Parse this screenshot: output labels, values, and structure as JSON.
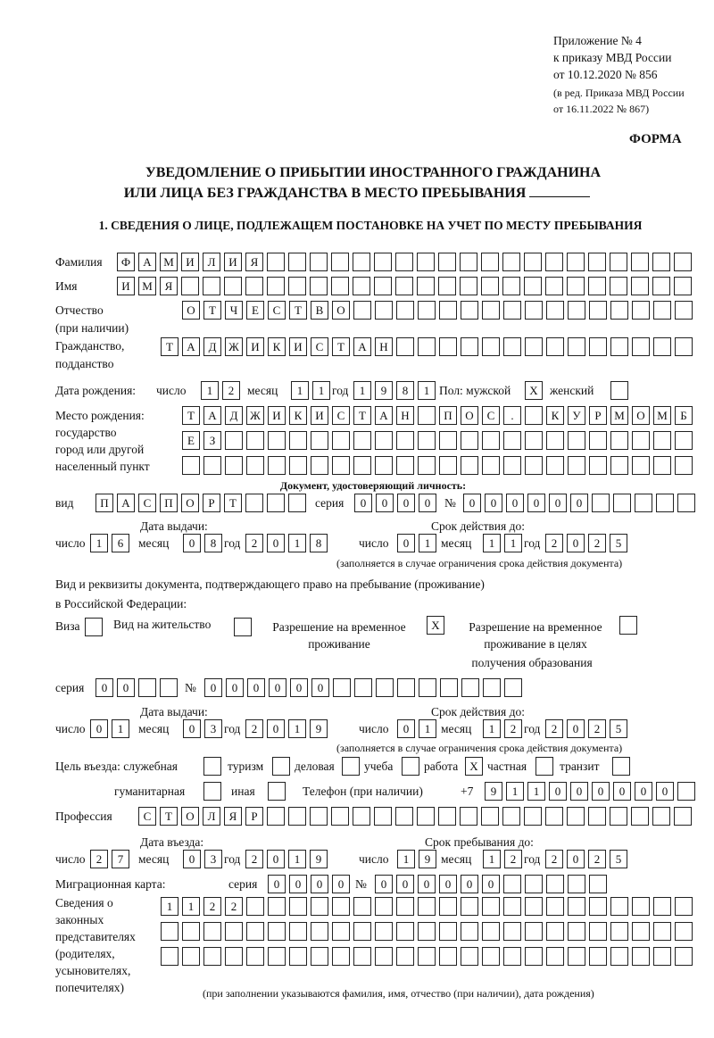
{
  "header": {
    "appendix_line1": "Приложение № 4",
    "appendix_line2": "к приказу МВД России",
    "appendix_line3": "от 10.12.2020 № 856",
    "amend_line1": "(в ред. Приказа МВД России",
    "amend_line2": "от 16.11.2022 № 867)",
    "form_label": "ФОРМА",
    "title_line1": "УВЕДОМЛЕНИЕ О ПРИБЫТИИ ИНОСТРАННОГО ГРАЖДАНИНА",
    "title_line2": "ИЛИ ЛИЦА БЕЗ ГРАЖДАНСТВА В МЕСТО ПРЕБЫВАНИЯ",
    "section1": "1. СВЕДЕНИЯ О ЛИЦЕ, ПОДЛЕЖАЩЕМ ПОСТАНОВКЕ НА УЧЕТ ПО МЕСТУ ПРЕБЫВАНИЯ"
  },
  "labels": {
    "surname": "Фамилия",
    "name": "Имя",
    "patronymic": "Отчество",
    "patronymic_note": "(при наличии)",
    "citizenship": "Гражданство,",
    "citizenship2": "подданство",
    "birth_date": "Дата рождения:",
    "day": "число",
    "month": "месяц",
    "year": "год",
    "sex": "Пол: мужской",
    "female": "женский",
    "birthplace1": "Место рождения:",
    "birthplace2": "государство",
    "birthplace3": "город или другой",
    "birthplace4": "населенный пункт",
    "id_doc": "Документ, удостоверяющий личность:",
    "kind": "вид",
    "series": "серия",
    "number": "№",
    "issue_date": "Дата выдачи:",
    "valid_until": "Срок действия до:",
    "valid_note": "(заполняется в случае ограничения срока действия документа)",
    "stay_doc1": "Вид и реквизиты документа, подтверждающего право на пребывание (проживание)",
    "stay_doc2": "в Российской Федерации:",
    "visa": "Виза",
    "residence": "Вид на жительство",
    "temp1": "Разрешение на временное",
    "temp2": "проживание",
    "edu1": "Разрешение на временное",
    "edu2": "проживание в целях",
    "edu3": "получения образования",
    "purpose": "Цель въезда: служебная",
    "tourism": "туризм",
    "business": "деловая",
    "study": "учеба",
    "work": "работа",
    "private": "частная",
    "transit": "транзит",
    "humanitarian": "гуманитарная",
    "other": "иная",
    "phone": "Телефон (при наличии)",
    "phone_prefix": "+7",
    "profession": "Профессия",
    "entry_date": "Дата въезда:",
    "stay_until": "Срок пребывания до:",
    "migration_card": "Миграционная карта:",
    "reps1": "Сведения о",
    "reps2": "законных",
    "reps3": "представителях",
    "reps4": "(родителях,",
    "reps5": "усыновителях,",
    "reps6": "попечителях)",
    "reps_note": "(при заполнении указываются фамилия, имя, отчество (при наличии), дата рождения)"
  },
  "values": {
    "surname": "ФАМИЛИЯ",
    "name": "ИМЯ",
    "patronymic": "ОТЧЕСТВО",
    "citizenship": "ТАДЖИКИСТАН",
    "birth_day": "12",
    "birth_month": "11",
    "birth_year": "1981",
    "sex_male": "X",
    "sex_female": "",
    "birthplace_row1": "ТАДЖИКИСТАН ПОС. КУРМОМБ",
    "birthplace_row2": "ЕЗ",
    "birthplace_row3": "",
    "id_kind": "ПАСПОРТ",
    "id_series": "0000",
    "id_number": "000000",
    "id_issue_day": "16",
    "id_issue_month": "08",
    "id_issue_year": "2018",
    "id_valid_day": "01",
    "id_valid_month": "11",
    "id_valid_year": "2025",
    "visa": "",
    "residence": "",
    "temp_residence": "X",
    "edu_residence": "",
    "stay_series": "00",
    "stay_number": "000000",
    "stay_issue_day": "01",
    "stay_issue_month": "03",
    "stay_issue_year": "2019",
    "stay_valid_day": "01",
    "stay_valid_month": "12",
    "stay_valid_year": "2025",
    "purpose_service": "",
    "purpose_tourism": "",
    "purpose_business": "",
    "purpose_study": "",
    "purpose_work": "X",
    "purpose_private": "",
    "purpose_transit": "",
    "purpose_humanitarian": "",
    "purpose_other": "",
    "phone": "911000000",
    "profession": "СТОЛЯР",
    "entry_day": "27",
    "entry_month": "03",
    "entry_year": "2019",
    "stay_until_day": "19",
    "stay_until_month": "12",
    "stay_until_year": "2025",
    "mig_series": "0000",
    "mig_number": "000000",
    "reps_row1": "1122",
    "reps_row2": "",
    "reps_row3": ""
  }
}
